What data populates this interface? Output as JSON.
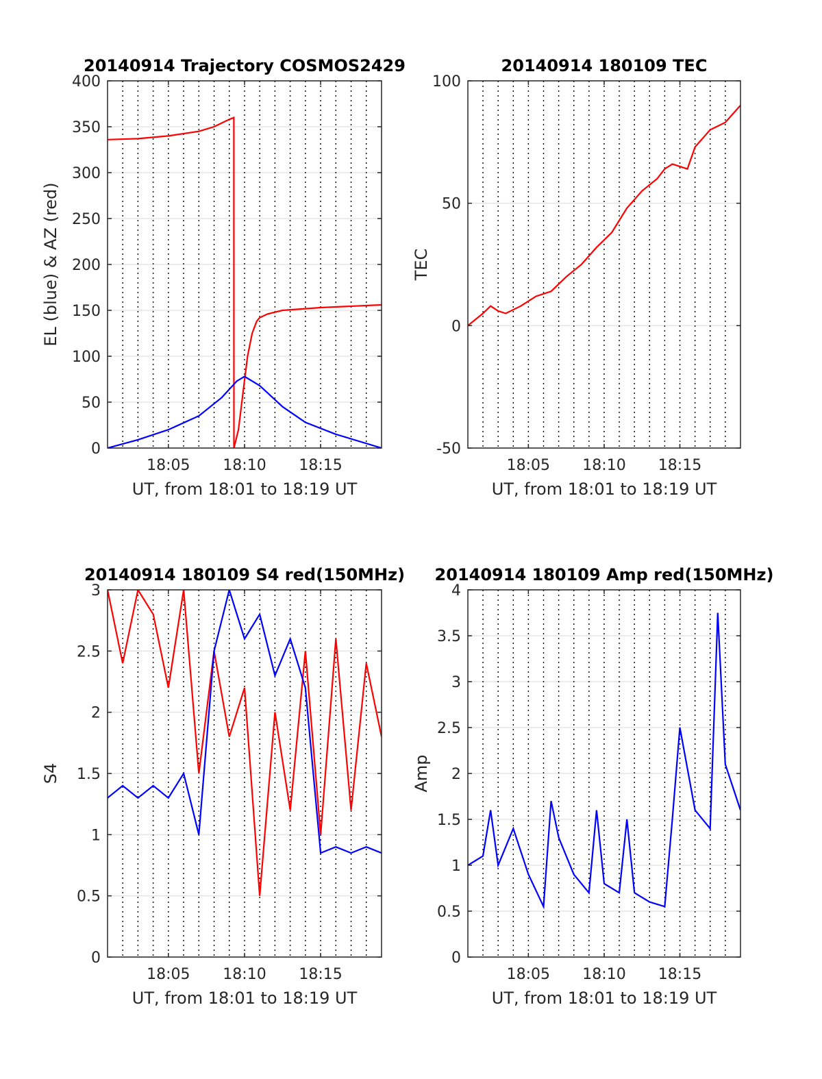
{
  "figure": {
    "colors": {
      "red": "#ff0000",
      "blue": "#0000ff",
      "grid": "#e5e5e5",
      "axis": "#262626"
    }
  },
  "chart_data": [
    {
      "type": "line",
      "title": "20140914 Trajectory COSMOS2429",
      "xlabel": "UT, from 18:01 to 18:19 UT",
      "ylabel": "EL (blue) & AZ (red)",
      "xlim": [
        18.0167,
        18.3167
      ],
      "ylim": [
        0,
        400
      ],
      "xticks": [
        18.0833,
        18.1667,
        18.25
      ],
      "xticklabels": [
        "18:05",
        "18:10",
        "18:15"
      ],
      "yticks": [
        0,
        50,
        100,
        150,
        200,
        250,
        300,
        350,
        400
      ],
      "yticklabels": [
        "0",
        "50",
        "100",
        "150",
        "200",
        "250",
        "300",
        "350",
        "400"
      ],
      "minor_x_gridlines_minutes": [
        2,
        3,
        4,
        5,
        6,
        7,
        8,
        9,
        10,
        11,
        12,
        13,
        14,
        15,
        16,
        17,
        18
      ],
      "grid": true,
      "series": [
        {
          "name": "AZ",
          "color": "#ff0000",
          "x": [
            18.0167,
            18.05,
            18.0833,
            18.1167,
            18.1333,
            18.15,
            18.155,
            18.1551,
            18.16,
            18.165,
            18.17,
            18.175,
            18.18,
            18.1833,
            18.1917,
            18.2083,
            18.25,
            18.3167
          ],
          "y": [
            336,
            337,
            340,
            345,
            350,
            358,
            360,
            0,
            20,
            60,
            100,
            125,
            138,
            142,
            146,
            150,
            153,
            156
          ]
        },
        {
          "name": "EL",
          "color": "#0000ff",
          "x": [
            18.0167,
            18.05,
            18.0833,
            18.1167,
            18.1417,
            18.1583,
            18.1667,
            18.1833,
            18.2083,
            18.2333,
            18.2667,
            18.3167
          ],
          "y": [
            0,
            9,
            20,
            35,
            55,
            73,
            78,
            68,
            45,
            28,
            15,
            0
          ]
        }
      ]
    },
    {
      "type": "line",
      "title": "20140914 180109 TEC",
      "xlabel": "UT, from 18:01 to 18:19 UT",
      "ylabel": "TEC",
      "xlim": [
        18.0167,
        18.3167
      ],
      "ylim": [
        -50,
        100
      ],
      "xticks": [
        18.0833,
        18.1667,
        18.25
      ],
      "xticklabels": [
        "18:05",
        "18:10",
        "18:15"
      ],
      "yticks": [
        -50,
        0,
        50,
        100
      ],
      "yticklabels": [
        "-50",
        "0",
        "50",
        "100"
      ],
      "grid": true,
      "series": [
        {
          "name": "TEC",
          "color": "#ff0000",
          "x": [
            18.0167,
            18.0333,
            18.0417,
            18.05,
            18.0583,
            18.075,
            18.0917,
            18.1083,
            18.125,
            18.1417,
            18.1583,
            18.175,
            18.1917,
            18.2083,
            18.225,
            18.2333,
            18.2417,
            18.2583,
            18.2667,
            18.2833,
            18.3,
            18.3167
          ],
          "y": [
            0,
            5,
            8,
            6,
            5,
            8,
            12,
            14,
            20,
            25,
            32,
            38,
            48,
            55,
            60,
            64,
            66,
            64,
            73,
            80,
            83,
            90
          ]
        }
      ]
    },
    {
      "type": "line",
      "title": "20140914 180109 S4 red(150MHz)",
      "xlabel": "UT, from 18:01 to 18:19 UT",
      "ylabel": "S4",
      "xlim": [
        18.0167,
        18.3167
      ],
      "ylim": [
        0,
        3
      ],
      "xticks": [
        18.0833,
        18.1667,
        18.25
      ],
      "xticklabels": [
        "18:05",
        "18:10",
        "18:15"
      ],
      "yticks": [
        0,
        0.5,
        1,
        1.5,
        2,
        2.5,
        3
      ],
      "yticklabels": [
        "0",
        "0.5",
        "1",
        "1.5",
        "2",
        "2.5",
        "3"
      ],
      "grid": true,
      "series": [
        {
          "name": "S4 red",
          "color": "#ff0000",
          "x": [
            18.0167,
            18.0333,
            18.05,
            18.0667,
            18.0833,
            18.1,
            18.1167,
            18.1333,
            18.15,
            18.1667,
            18.1833,
            18.2,
            18.2167,
            18.2333,
            18.25,
            18.2667,
            18.2833,
            18.3,
            18.3167
          ],
          "y": [
            3,
            2.4,
            3,
            2.8,
            2.2,
            3,
            1.5,
            2.5,
            1.8,
            2.2,
            0.5,
            2.0,
            1.2,
            2.5,
            1.0,
            2.6,
            1.2,
            2.4,
            1.8
          ]
        },
        {
          "name": "S4 blue",
          "color": "#0000ff",
          "x": [
            18.0167,
            18.0333,
            18.05,
            18.0667,
            18.0833,
            18.1,
            18.1167,
            18.1333,
            18.15,
            18.1667,
            18.1833,
            18.2,
            18.2167,
            18.2333,
            18.25,
            18.2667,
            18.2833,
            18.3,
            18.3167
          ],
          "y": [
            1.3,
            1.4,
            1.3,
            1.4,
            1.3,
            1.5,
            1.0,
            2.5,
            3.0,
            2.6,
            2.8,
            2.3,
            2.6,
            2.2,
            0.85,
            0.9,
            0.85,
            0.9,
            0.85
          ]
        }
      ]
    },
    {
      "type": "line",
      "title": "20140914 180109 Amp red(150MHz)",
      "xlabel": "UT, from 18:01 to 18:19 UT",
      "ylabel": "Amp",
      "xlim": [
        18.0167,
        18.3167
      ],
      "ylim": [
        0,
        4
      ],
      "xticks": [
        18.0833,
        18.1667,
        18.25
      ],
      "xticklabels": [
        "18:05",
        "18:10",
        "18:15"
      ],
      "yticks": [
        0,
        0.5,
        1,
        1.5,
        2,
        2.5,
        3,
        3.5,
        4
      ],
      "yticklabels": [
        "0",
        "0.5",
        "1",
        "1.5",
        "2",
        "2.5",
        "3",
        "3.5",
        "4"
      ],
      "grid": true,
      "series": [
        {
          "name": "Amp",
          "color": "#0000ff",
          "x": [
            18.0167,
            18.0333,
            18.0417,
            18.05,
            18.0667,
            18.0833,
            18.1,
            18.1083,
            18.1167,
            18.1333,
            18.15,
            18.1583,
            18.1667,
            18.1833,
            18.1917,
            18.2,
            18.2167,
            18.2333,
            18.2417,
            18.25,
            18.2667,
            18.2833,
            18.2917,
            18.3,
            18.3167
          ],
          "y": [
            1.0,
            1.1,
            1.6,
            1.0,
            1.4,
            0.9,
            0.55,
            1.7,
            1.3,
            0.9,
            0.7,
            1.6,
            0.8,
            0.7,
            1.5,
            0.7,
            0.6,
            0.55,
            1.5,
            2.5,
            1.6,
            1.4,
            3.75,
            2.1,
            1.6
          ]
        }
      ]
    }
  ]
}
